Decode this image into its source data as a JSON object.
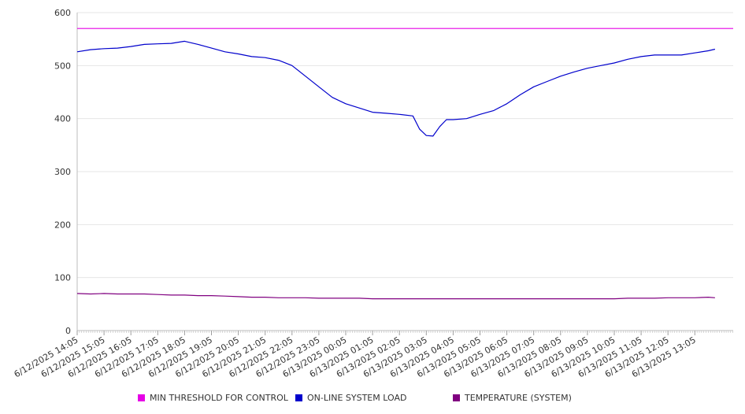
{
  "chart_data": {
    "type": "line",
    "title": "",
    "xlabel": "",
    "ylabel": "",
    "ylim": [
      0,
      600
    ],
    "yticks": [
      0,
      100,
      200,
      300,
      400,
      500,
      600
    ],
    "grid": true,
    "legend_position": "bottom",
    "x_tick_labels": [
      "6/12/2025 14:05",
      "6/12/2025 15:05",
      "6/12/2025 16:05",
      "6/12/2025 17:05",
      "6/12/2025 18:05",
      "6/12/2025 19:05",
      "6/12/2025 20:05",
      "6/12/2025 21:05",
      "6/12/2025 22:05",
      "6/12/2025 23:05",
      "6/13/2025 00:05",
      "6/13/2025 01:05",
      "6/13/2025 02:05",
      "6/13/2025 03:05",
      "6/13/2025 04:05",
      "6/13/2025 05:05",
      "6/13/2025 06:05",
      "6/13/2025 07:05",
      "6/13/2025 08:05",
      "6/13/2025 09:05",
      "6/13/2025 10:05",
      "6/13/2025 11:05",
      "6/13/2025 12:05",
      "6/13/2025 13:05"
    ],
    "x": [
      "6/12/2025 14:05",
      "6/12/2025 14:35",
      "6/12/2025 15:05",
      "6/12/2025 15:35",
      "6/12/2025 16:05",
      "6/12/2025 16:35",
      "6/12/2025 17:05",
      "6/12/2025 17:35",
      "6/12/2025 18:05",
      "6/12/2025 18:35",
      "6/12/2025 19:05",
      "6/12/2025 19:35",
      "6/12/2025 20:05",
      "6/12/2025 20:35",
      "6/12/2025 21:05",
      "6/12/2025 21:35",
      "6/12/2025 22:05",
      "6/12/2025 22:35",
      "6/12/2025 23:05",
      "6/12/2025 23:35",
      "6/13/2025 00:05",
      "6/13/2025 00:35",
      "6/13/2025 01:05",
      "6/13/2025 01:35",
      "6/13/2025 02:05",
      "6/13/2025 02:35",
      "6/13/2025 02:50",
      "6/13/2025 03:05",
      "6/13/2025 03:20",
      "6/13/2025 03:35",
      "6/13/2025 03:50",
      "6/13/2025 04:05",
      "6/13/2025 04:35",
      "6/13/2025 05:05",
      "6/13/2025 05:35",
      "6/13/2025 06:05",
      "6/13/2025 06:35",
      "6/13/2025 07:05",
      "6/13/2025 07:35",
      "6/13/2025 08:05",
      "6/13/2025 08:35",
      "6/13/2025 09:05",
      "6/13/2025 09:35",
      "6/13/2025 10:05",
      "6/13/2025 10:35",
      "6/13/2025 11:05",
      "6/13/2025 11:35",
      "6/13/2025 12:05",
      "6/13/2025 12:35",
      "6/13/2025 13:05",
      "6/13/2025 13:35",
      "6/13/2025 13:50"
    ],
    "series": [
      {
        "name": "MIN THRESHOLD FOR CONTROL",
        "color": "#e600e6",
        "values": [
          570,
          570,
          570,
          570,
          570,
          570,
          570,
          570,
          570,
          570,
          570,
          570,
          570,
          570,
          570,
          570,
          570,
          570,
          570,
          570,
          570,
          570,
          570,
          570,
          570,
          570,
          570,
          570,
          570,
          570,
          570,
          570,
          570,
          570,
          570,
          570,
          570,
          570,
          570,
          570,
          570,
          570,
          570,
          570,
          570,
          570,
          570,
          570,
          570,
          570,
          570,
          570
        ]
      },
      {
        "name": "ON-LINE SYSTEM LOAD",
        "color": "#0000cc",
        "values": [
          526,
          530,
          532,
          533,
          536,
          540,
          541,
          542,
          546,
          540,
          533,
          526,
          522,
          517,
          515,
          510,
          500,
          480,
          460,
          440,
          428,
          420,
          412,
          410,
          408,
          405,
          380,
          368,
          367,
          385,
          398,
          398,
          400,
          408,
          415,
          428,
          445,
          460,
          470,
          480,
          488,
          495,
          500,
          505,
          512,
          517,
          520,
          520,
          520,
          524,
          528,
          531
        ]
      },
      {
        "name": "TEMPERATURE (SYSTEM)",
        "color": "#800080",
        "values": [
          70,
          69,
          70,
          69,
          69,
          69,
          68,
          67,
          67,
          66,
          66,
          65,
          64,
          63,
          63,
          62,
          62,
          62,
          61,
          61,
          61,
          61,
          60,
          60,
          60,
          60,
          60,
          60,
          60,
          60,
          60,
          60,
          60,
          60,
          60,
          60,
          60,
          60,
          60,
          60,
          60,
          60,
          60,
          60,
          61,
          61,
          61,
          62,
          62,
          62,
          63,
          62
        ]
      }
    ]
  }
}
